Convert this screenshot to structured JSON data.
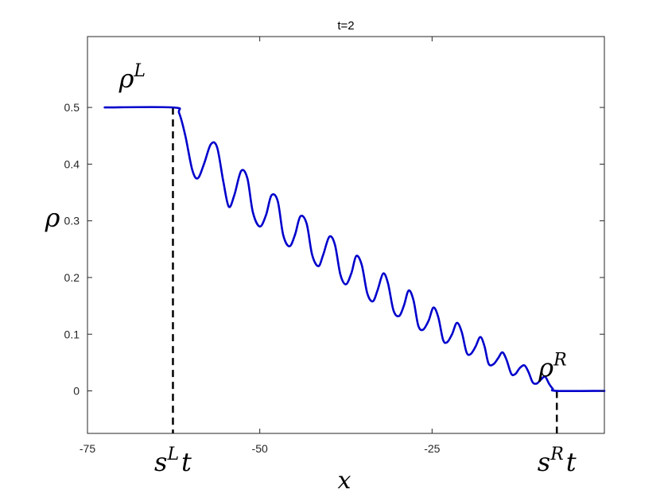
{
  "chart_data": {
    "type": "line",
    "title": "t=2",
    "xlabel": "x",
    "ylabel": "ρ",
    "xlim": [
      -75,
      0
    ],
    "ylim": [
      -0.075,
      0.625
    ],
    "x_ticks": [
      -75,
      -50,
      -25
    ],
    "x_tick_labels": [
      "-75",
      "-50",
      "-25"
    ],
    "y_ticks": [
      0,
      0.1,
      0.2,
      0.3,
      0.4,
      0.5
    ],
    "y_tick_labels": [
      "0",
      "0.1",
      "0.2",
      "0.3",
      "0.4",
      "0.5"
    ],
    "grid": false,
    "line_color": "#0000cc",
    "reference_lines": [
      {
        "x": -62.6,
        "y_top": 0.5
      },
      {
        "x": -6.9,
        "y_top": 0.0
      }
    ],
    "annotations": [
      {
        "text": "ρ",
        "superscript": "L",
        "x": -68.5,
        "y": 0.535
      },
      {
        "text": "ρ",
        "superscript": "R",
        "x": -7.5,
        "y": 0.025
      },
      {
        "text": "s",
        "superscript": "L",
        "suffix": "t",
        "x": -62.6,
        "below_axis": true
      },
      {
        "text": "s",
        "superscript": "R",
        "suffix": "t",
        "x": -6.9,
        "below_axis": true
      }
    ],
    "series": [
      {
        "x": [
          -72.5,
          -62.6,
          -61.7,
          -60.8,
          -59.8,
          -59.0,
          -58.1,
          -57.1,
          -56.2,
          -55.3,
          -54.5,
          -53.7,
          -52.7,
          -51.8,
          -51.0,
          -50.0,
          -49.1,
          -48.3,
          -47.4,
          -46.6,
          -45.7,
          -44.9,
          -44.1,
          -43.2,
          -42.4,
          -41.5,
          -40.8,
          -39.9,
          -39.1,
          -38.3,
          -37.5,
          -36.7,
          -36.0,
          -35.2,
          -34.4,
          -33.6,
          -32.9,
          -32.1,
          -31.4,
          -30.6,
          -29.8,
          -29.1,
          -28.4,
          -27.7,
          -27.0,
          -26.3,
          -25.5,
          -24.8,
          -24.1,
          -23.4,
          -22.8,
          -22.1,
          -21.4,
          -20.7,
          -20.0,
          -19.4,
          -18.7,
          -18.0,
          -17.4,
          -16.8,
          -16.1,
          -15.4,
          -14.8,
          -14.2,
          -13.5,
          -12.9,
          -12.3,
          -11.6,
          -11.0,
          -10.4,
          -9.8,
          -9.2,
          -8.6,
          -8.0,
          -7.5,
          -6.9,
          0.0
        ],
        "y": [
          0.5,
          0.5,
          0.49,
          0.45,
          0.39,
          0.375,
          0.4,
          0.435,
          0.43,
          0.37,
          0.325,
          0.345,
          0.388,
          0.375,
          0.315,
          0.29,
          0.31,
          0.345,
          0.335,
          0.275,
          0.255,
          0.275,
          0.308,
          0.295,
          0.24,
          0.22,
          0.24,
          0.272,
          0.258,
          0.205,
          0.188,
          0.208,
          0.238,
          0.222,
          0.172,
          0.158,
          0.178,
          0.207,
          0.19,
          0.142,
          0.132,
          0.15,
          0.177,
          0.16,
          0.115,
          0.108,
          0.124,
          0.147,
          0.13,
          0.09,
          0.086,
          0.1,
          0.12,
          0.104,
          0.068,
          0.065,
          0.078,
          0.095,
          0.079,
          0.048,
          0.047,
          0.058,
          0.068,
          0.055,
          0.03,
          0.03,
          0.04,
          0.045,
          0.033,
          0.015,
          0.013,
          0.02,
          0.025,
          0.012,
          0.004,
          0.0,
          0.0
        ]
      }
    ]
  }
}
